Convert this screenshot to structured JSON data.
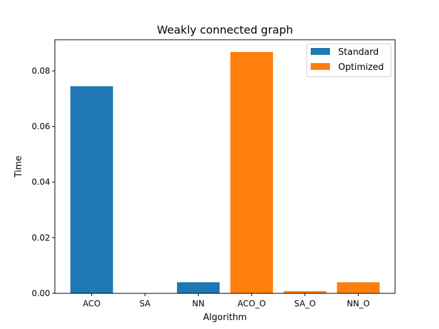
{
  "chart_data": {
    "type": "bar",
    "title": "Weakly connected graph",
    "xlabel": "Algorithm",
    "ylabel": "Time",
    "categories": [
      "ACO",
      "SA",
      "NN",
      "ACO_O",
      "SA_O",
      "NN_O"
    ],
    "series": [
      {
        "name": "Standard",
        "color": "#1f77b4",
        "values": [
          0.0745,
          0.0,
          0.004,
          null,
          null,
          null
        ]
      },
      {
        "name": "Optimized",
        "color": "#ff7f0e",
        "values": [
          null,
          null,
          null,
          0.0868,
          0.0008,
          0.004
        ]
      }
    ],
    "ylim": [
      0,
      0.0912
    ],
    "yticks": [
      0.0,
      0.02,
      0.04,
      0.06,
      0.08
    ],
    "ytick_labels": [
      "0.00",
      "0.02",
      "0.04",
      "0.06",
      "0.08"
    ],
    "grid": false,
    "legend_position": "top-right"
  }
}
